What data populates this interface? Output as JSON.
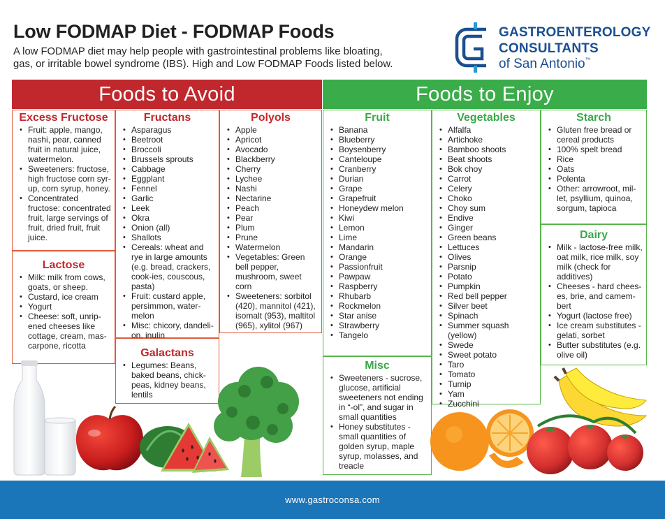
{
  "header": {
    "title": "Low FODMAP Diet - FODMAP Foods",
    "subtitle_lines": [
      "A low FODMAP diet may help people with gastrointestinal problems like bloating,",
      "gas, or irritable bowel syndrome (IBS). High and Low FODMAP Foods listed below."
    ]
  },
  "logo": {
    "line1": "GASTROENTEROLOGY",
    "line2": "CONSULTANTS",
    "line3": "of San Antonio",
    "tm": "™",
    "brand_color": "#1b4f8f"
  },
  "avoid": {
    "banner": "Foods to Avoid",
    "color": "#c0282e",
    "excess_fructose": {
      "title": "Excess Fructose",
      "items": [
        "Fruit: apple, mango, nashi, pear, canned fruit in natural juice, watermelon.",
        "Sweeteners: fructose, high fructose corn syr-up, corn syrup, honey.",
        "Concentrated fructose: concentrated fruit, large servings of fruit, dried fruit, fruit juice."
      ]
    },
    "lactose": {
      "title": "Lactose",
      "items": [
        "Milk: milk from cows, goats, or sheep.",
        "Custard, ice cream",
        "Yogurt",
        "Cheese: soft, unrip-ened cheeses like cottage, cream, mas-carpone, ricotta"
      ]
    },
    "fructans": {
      "title": "Fructans",
      "items": [
        "Asparagus",
        "Beetroot",
        "Broccoli",
        "Brussels sprouts",
        "Cabbage",
        "Eggplant",
        "Fennel",
        "Garlic",
        "Leek",
        "Okra",
        "Onion (all)",
        "Shallots",
        "Cereals: wheat and rye in large amounts (e.g. bread, crackers, cook-ies, couscous, pasta)",
        "Fruit: custard apple, persimmon, water-melon",
        "Misc: chicory, dandeli-on, inulin"
      ]
    },
    "galactans": {
      "title": "Galactans",
      "items": [
        "Legumes: Beans, baked beans, chick-peas, kidney beans, lentils"
      ]
    },
    "polyols": {
      "title": "Polyols",
      "items": [
        "Apple",
        "Apricot",
        "Avocado",
        "Blackberry",
        "Cherry",
        "Lychee",
        "Nashi",
        "Nectarine",
        "Peach",
        "Pear",
        "Plum",
        "Prune",
        "Watermelon",
        "Vegetables: Green bell pepper, mushroom, sweet corn",
        "Sweeteners: sorbitol (420), mannitol (421), isomalt (953), maltitol (965), xylitol (967)"
      ]
    }
  },
  "enjoy": {
    "banner": "Foods to Enjoy",
    "color": "#3bac4a",
    "fruit": {
      "title": "Fruit",
      "items": [
        "Banana",
        "Blueberry",
        "Boysenberry",
        "Canteloupe",
        "Cranberry",
        "Durian",
        "Grape",
        "Grapefruit",
        "Honeydew melon",
        "Kiwi",
        "Lemon",
        "Lime",
        "Mandarin",
        "Orange",
        "Passionfruit",
        "Pawpaw",
        "Raspberry",
        "Rhubarb",
        "Rockmelon",
        "Star anise",
        "Strawberry",
        "Tangelo"
      ]
    },
    "misc": {
      "title": "Misc",
      "items": [
        "Sweeteners - sucrose, glucose, artificial sweeteners not ending in “-ol”, and sugar in small quantities",
        "Honey substitutes - small quantities of golden syrup, maple syrup, molasses, and treacle"
      ]
    },
    "vegetables": {
      "title": "Vegetables",
      "items": [
        "Alfalfa",
        "Artichoke",
        "Bamboo shoots",
        "Beat shoots",
        "Bok choy",
        "Carrot",
        "Celery",
        "Choko",
        "Choy sum",
        "Endive",
        "Ginger",
        "Green beans",
        "Lettuces",
        "Olives",
        "Parsnip",
        "Potato",
        "Pumpkin",
        "Red bell pepper",
        "Silver beet",
        "Spinach",
        "Summer squash (yellow)",
        "Swede",
        "Sweet potato",
        "Taro",
        "Tomato",
        "Turnip",
        "Yam",
        "Zucchini"
      ]
    },
    "starch": {
      "title": "Starch",
      "items": [
        "Gluten free bread or cereal products",
        "100% spelt bread",
        "Rice",
        "Oats",
        "Polenta",
        "Other: arrowroot, mil-let, psyllium, quinoa, sorgum, tapioca"
      ]
    },
    "dairy": {
      "title": "Dairy",
      "items": [
        "Milk - lactose-free milk, oat milk, rice milk, soy milk (check for additives)",
        "Cheeses - hard chees-es, brie, and camem-bert",
        "Yogurt (lactose free)",
        "Ice cream substitutes - gelati, sorbet",
        "Butter substitutes (e.g. olive oil)"
      ]
    }
  },
  "footer": {
    "url": "www.gastroconsa.com",
    "color": "#1b75b9"
  },
  "images": {
    "icons": [
      "milk-bottle-icon",
      "apple-icon",
      "watermelon-icon",
      "broccoli-icon",
      "orange-icon",
      "banana-icon",
      "tomato-icon"
    ]
  }
}
